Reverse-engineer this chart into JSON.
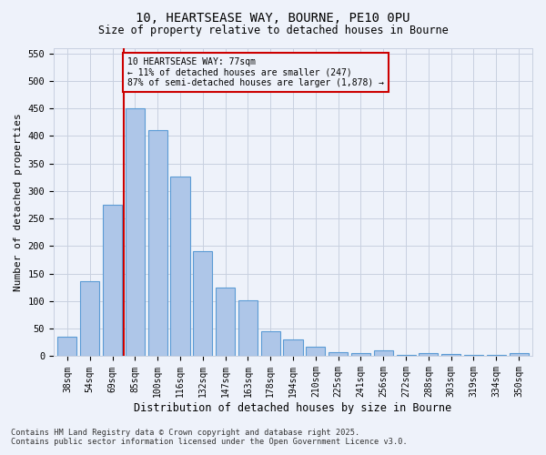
{
  "title_line1": "10, HEARTSEASE WAY, BOURNE, PE10 0PU",
  "title_line2": "Size of property relative to detached houses in Bourne",
  "xlabel": "Distribution of detached houses by size in Bourne",
  "ylabel": "Number of detached properties",
  "categories": [
    "38sqm",
    "54sqm",
    "69sqm",
    "85sqm",
    "100sqm",
    "116sqm",
    "132sqm",
    "147sqm",
    "163sqm",
    "178sqm",
    "194sqm",
    "210sqm",
    "225sqm",
    "241sqm",
    "256sqm",
    "272sqm",
    "288sqm",
    "303sqm",
    "319sqm",
    "334sqm",
    "350sqm"
  ],
  "values": [
    35,
    137,
    275,
    450,
    410,
    327,
    190,
    125,
    102,
    46,
    30,
    18,
    7,
    5,
    10,
    3,
    5,
    4,
    3,
    2,
    6
  ],
  "bar_color": "#aec6e8",
  "bar_edge_color": "#5b9bd5",
  "vline_x": 2.5,
  "vline_color": "#cc0000",
  "annotation_title": "10 HEARTSEASE WAY: 77sqm",
  "annotation_line2": "← 11% of detached houses are smaller (247)",
  "annotation_line3": "87% of semi-detached houses are larger (1,878) →",
  "annotation_box_color": "#cc0000",
  "ylim": [
    0,
    560
  ],
  "yticks": [
    0,
    50,
    100,
    150,
    200,
    250,
    300,
    350,
    400,
    450,
    500,
    550
  ],
  "footnote_line1": "Contains HM Land Registry data © Crown copyright and database right 2025.",
  "footnote_line2": "Contains public sector information licensed under the Open Government Licence v3.0.",
  "bg_color": "#eef2fa",
  "grid_color": "#c8d0e0"
}
